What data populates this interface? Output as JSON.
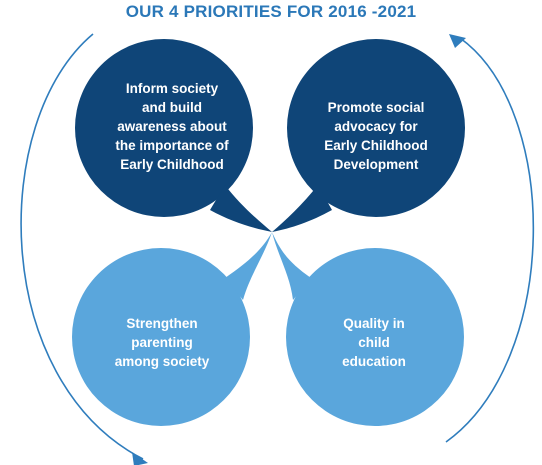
{
  "title": "OUR 4 PRIORITIES FOR 2016 -2021",
  "colors": {
    "dark_petal": "#0f4578",
    "light_petal": "#5aa6dc",
    "arrow": "#2f7dbd",
    "title": "#2b78b8"
  },
  "priorities": [
    {
      "id": "top-left",
      "lines": [
        "Inform society",
        "and build",
        "awareness about",
        "the importance of",
        "Early Childhood"
      ]
    },
    {
      "id": "top-right",
      "lines": [
        "Promote social",
        "advocacy for",
        "Early Childhood",
        "Development"
      ]
    },
    {
      "id": "bottom-left",
      "lines": [
        "Strengthen",
        "parenting",
        "among society"
      ]
    },
    {
      "id": "bottom-right",
      "lines": [
        "Quality in",
        "child",
        "education"
      ]
    }
  ]
}
